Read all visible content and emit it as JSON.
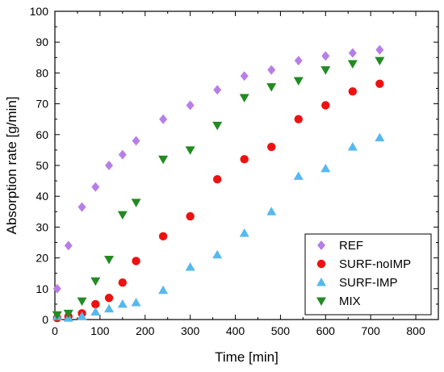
{
  "chart_data": {
    "type": "scatter",
    "xlabel": "Time [min]",
    "ylabel": "Absorption rate [g/min]",
    "xlim": [
      0,
      850
    ],
    "ylim": [
      0,
      100
    ],
    "xticks": [
      0,
      100,
      200,
      300,
      400,
      500,
      600,
      700,
      800
    ],
    "yticks": [
      0,
      10,
      20,
      30,
      40,
      50,
      60,
      70,
      80,
      90,
      100
    ],
    "grid": false,
    "legend_position": "bottom-right",
    "series": [
      {
        "name": "REF",
        "marker": "diamond",
        "color": "#b77ee8",
        "x": [
          5,
          30,
          60,
          90,
          120,
          150,
          180,
          240,
          300,
          360,
          420,
          480,
          540,
          600,
          660,
          720
        ],
        "y": [
          10,
          24,
          36.5,
          43,
          50,
          53.5,
          58,
          65,
          69.5,
          74.5,
          79,
          81,
          84,
          85.5,
          86.5,
          87.5
        ]
      },
      {
        "name": "SURF-noIMP",
        "marker": "circle",
        "color": "#ee1111",
        "x": [
          5,
          30,
          60,
          90,
          120,
          150,
          180,
          240,
          300,
          360,
          420,
          480,
          540,
          600,
          660,
          720
        ],
        "y": [
          0.5,
          1,
          2,
          5,
          7,
          12,
          19,
          27,
          33.5,
          45.5,
          52,
          56,
          65,
          69.5,
          74,
          76.5
        ]
      },
      {
        "name": "SURF-IMP",
        "marker": "triangle-up",
        "color": "#55b9ee",
        "x": [
          5,
          30,
          60,
          90,
          120,
          150,
          180,
          240,
          300,
          360,
          420,
          480,
          540,
          600,
          660,
          720
        ],
        "y": [
          1,
          0.5,
          1,
          2.5,
          3.5,
          5,
          5.5,
          9.5,
          17,
          21,
          28,
          35,
          46.5,
          49,
          56,
          59
        ]
      },
      {
        "name": "MIX",
        "marker": "triangle-down",
        "color": "#228b22",
        "x": [
          5,
          30,
          60,
          90,
          120,
          150,
          180,
          240,
          300,
          360,
          420,
          480,
          540,
          600,
          660,
          720
        ],
        "y": [
          1.5,
          2,
          6,
          12.5,
          19.5,
          34,
          38,
          52,
          55,
          63,
          72,
          75.5,
          77.5,
          81,
          83,
          84
        ]
      }
    ]
  }
}
